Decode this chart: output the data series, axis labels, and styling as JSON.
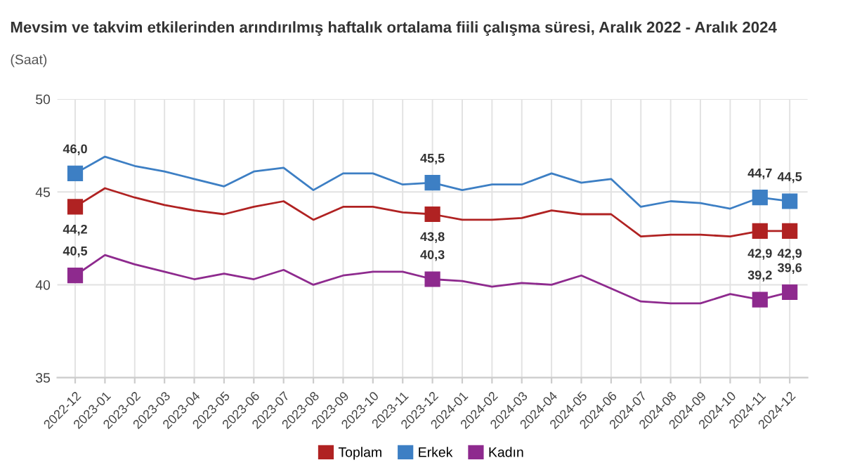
{
  "chart_data": {
    "type": "line",
    "title": "Mevsim ve takvim etkilerinden arındırılmış haftalık ortalama fiili çalışma süresi, Aralık 2022 - Aralık 2024",
    "subtitle": "(Saat)",
    "categories": [
      "2022-12",
      "2023-01",
      "2023-02",
      "2023-03",
      "2023-04",
      "2023-05",
      "2023-06",
      "2023-07",
      "2023-08",
      "2023-09",
      "2023-10",
      "2023-11",
      "2023-12",
      "2024-01",
      "2024-02",
      "2024-03",
      "2024-04",
      "2024-05",
      "2024-06",
      "2024-07",
      "2024-08",
      "2024-09",
      "2024-10",
      "2024-11",
      "2024-12"
    ],
    "series": [
      {
        "name": "Toplam",
        "color": "#b02222",
        "values": [
          44.2,
          45.2,
          44.7,
          44.3,
          44.0,
          43.8,
          44.2,
          44.5,
          43.5,
          44.2,
          44.2,
          43.9,
          43.8,
          43.5,
          43.5,
          43.6,
          44.0,
          43.8,
          43.8,
          42.6,
          42.7,
          42.7,
          42.6,
          42.9,
          42.9
        ],
        "value_labels": [
          "44,2",
          null,
          null,
          null,
          null,
          null,
          null,
          null,
          null,
          null,
          null,
          null,
          "43,8",
          null,
          null,
          null,
          null,
          null,
          null,
          null,
          null,
          null,
          null,
          "42,9",
          "42,9"
        ]
      },
      {
        "name": "Erkek",
        "color": "#3d7fc4",
        "values": [
          46.0,
          46.9,
          46.4,
          46.1,
          45.7,
          45.3,
          46.1,
          46.3,
          45.1,
          46.0,
          46.0,
          45.4,
          45.5,
          45.1,
          45.4,
          45.4,
          46.0,
          45.5,
          45.7,
          44.2,
          44.5,
          44.4,
          44.1,
          44.7,
          44.5
        ],
        "value_labels": [
          "46,0",
          null,
          null,
          null,
          null,
          null,
          null,
          null,
          null,
          null,
          null,
          null,
          "45,5",
          null,
          null,
          null,
          null,
          null,
          null,
          null,
          null,
          null,
          null,
          "44,7",
          "44,5"
        ]
      },
      {
        "name": "Kadın",
        "color": "#8e2a8e",
        "values": [
          40.5,
          41.6,
          41.1,
          40.7,
          40.3,
          40.6,
          40.3,
          40.8,
          40.0,
          40.5,
          40.7,
          40.7,
          40.3,
          40.2,
          39.9,
          40.1,
          40.0,
          40.5,
          39.8,
          39.1,
          39.0,
          39.0,
          39.5,
          39.2,
          39.6
        ],
        "value_labels": [
          "40,5",
          null,
          null,
          null,
          null,
          null,
          null,
          null,
          null,
          null,
          null,
          null,
          "40,3",
          null,
          null,
          null,
          null,
          null,
          null,
          null,
          null,
          null,
          null,
          "39,2",
          "39,6"
        ]
      }
    ],
    "ylim": [
      35,
      50
    ],
    "yticks": [
      35,
      40,
      45,
      50
    ],
    "grid": true,
    "legend": "bottom",
    "line_style": "solid"
  }
}
